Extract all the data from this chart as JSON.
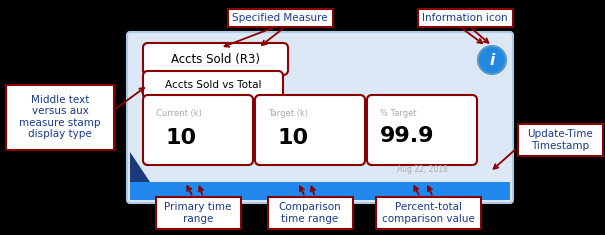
{
  "bg_color": "#000000",
  "stamp_bg": "#dce8f5",
  "stamp_border": "#b0c8e0",
  "arrow_color": "#8b0000",
  "ann_edge_color": "#8b0000",
  "ann_face_color": "#ffffff",
  "ann_text_color": "#1a3a8c",
  "title": "Accts Sold (R3)",
  "subtitle": "Accts Sold vs Total",
  "val1_label": "Current (k)",
  "val2_label": "Target (k)",
  "val3_label": "% Target",
  "val1": "10",
  "val2": "10",
  "val3": "99.9",
  "timestamp": "Aug 22, 2018",
  "info_icon_color": "#2288dd",
  "anno_specified_measure": "Specified Measure",
  "anno_info_icon": "Information icon",
  "anno_middle_text": "Middle text\nversus aux\nmeasure stamp\ndisplay type",
  "anno_primary": "Primary time\nrange",
  "anno_comparison": "Comparison\ntime range",
  "anno_percent": "Percent-total\ncomparison value",
  "anno_update": "Update-Time\nTimestamp",
  "value_color": "#000000",
  "label_color": "#aaaaaa",
  "timestamp_color": "#aaaaaa",
  "blue_bar_color": "#2288ee",
  "tri_color": "#1a3a7a"
}
